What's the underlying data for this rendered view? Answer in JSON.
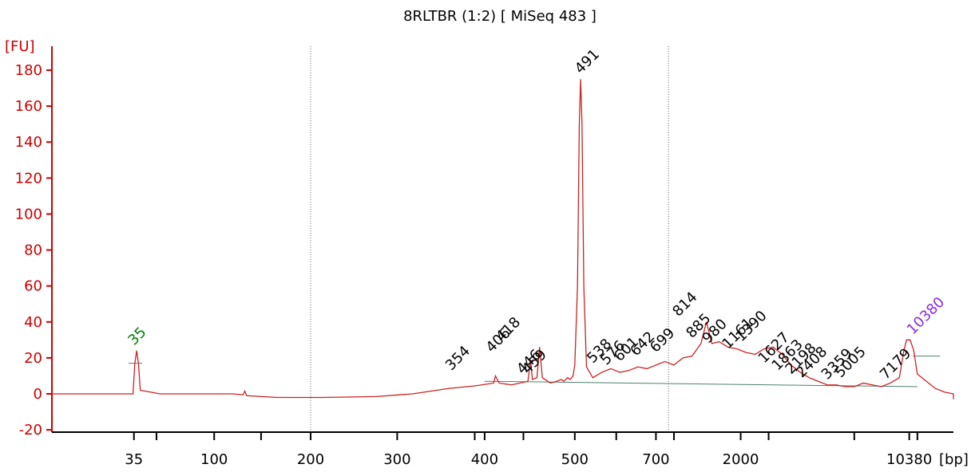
{
  "chart_data": {
    "type": "line",
    "title": "8RLTBR (1:2)  [ MiSeq 483 ]",
    "ylabel": "[FU]",
    "xlabel": "[bp]",
    "ylim": [
      -20,
      190
    ],
    "y_ticks": [
      -20,
      0,
      20,
      40,
      60,
      80,
      100,
      120,
      140,
      160,
      180
    ],
    "x_tick_labels": [
      "35",
      "100",
      "200",
      "300",
      "400",
      "500",
      "700",
      "2000",
      "10380"
    ],
    "x_axis_scale": "nonlinear (sizing ladder)",
    "markers": [
      {
        "label": "35",
        "color": "#008000"
      },
      {
        "label": "10380",
        "color": "#8a2be2"
      }
    ],
    "peak_labels": [
      {
        "label": "35",
        "color": "#008000",
        "height": 24
      },
      {
        "label": "354",
        "color": "#000000",
        "height": 10
      },
      {
        "label": "406",
        "color": "#000000",
        "height": 20
      },
      {
        "label": "418",
        "color": "#000000",
        "height": 26
      },
      {
        "label": "446",
        "color": "#000000",
        "height": 8
      },
      {
        "label": "459",
        "color": "#000000",
        "height": 8
      },
      {
        "label": "491",
        "color": "#000000",
        "height": 175
      },
      {
        "label": "538",
        "color": "#000000",
        "height": 14
      },
      {
        "label": "576",
        "color": "#000000",
        "height": 13
      },
      {
        "label": "601",
        "color": "#000000",
        "height": 15
      },
      {
        "label": "642",
        "color": "#000000",
        "height": 18
      },
      {
        "label": "699",
        "color": "#000000",
        "height": 20
      },
      {
        "label": "814",
        "color": "#000000",
        "height": 40
      },
      {
        "label": "885",
        "color": "#000000",
        "height": 28
      },
      {
        "label": "980",
        "color": "#000000",
        "height": 25
      },
      {
        "label": "1161",
        "color": "#000000",
        "height": 22
      },
      {
        "label": "1390",
        "color": "#000000",
        "height": 26
      },
      {
        "label": "1627",
        "color": "#000000",
        "height": 14
      },
      {
        "label": "1863",
        "color": "#000000",
        "height": 10
      },
      {
        "label": "2198",
        "color": "#000000",
        "height": 8
      },
      {
        "label": "2408",
        "color": "#000000",
        "height": 6
      },
      {
        "label": "3359",
        "color": "#000000",
        "height": 5
      },
      {
        "label": "5005",
        "color": "#000000",
        "height": 6
      },
      {
        "label": "7179",
        "color": "#000000",
        "height": 5
      },
      {
        "label": "10380",
        "color": "#8a2be2",
        "height": 30
      }
    ],
    "series": [
      {
        "color": "#cc2222",
        "points": [
          [
            0.0,
            0
          ],
          [
            0.06,
            0
          ],
          [
            0.09,
            0
          ],
          [
            0.092,
            17
          ],
          [
            0.094,
            24
          ],
          [
            0.096,
            17
          ],
          [
            0.098,
            2
          ],
          [
            0.12,
            0
          ],
          [
            0.2,
            0
          ],
          [
            0.212,
            -0.5
          ],
          [
            0.214,
            1.5
          ],
          [
            0.216,
            -1
          ],
          [
            0.25,
            -2
          ],
          [
            0.3,
            -2
          ],
          [
            0.36,
            -1.5
          ],
          [
            0.4,
            0
          ],
          [
            0.44,
            3
          ],
          [
            0.47,
            4.5
          ],
          [
            0.49,
            6
          ],
          [
            0.492,
            10
          ],
          [
            0.496,
            6
          ],
          [
            0.51,
            5
          ],
          [
            0.528,
            7
          ],
          [
            0.531,
            19
          ],
          [
            0.533,
            8
          ],
          [
            0.538,
            9
          ],
          [
            0.541,
            26
          ],
          [
            0.544,
            9
          ],
          [
            0.553,
            6
          ],
          [
            0.56,
            7
          ],
          [
            0.565,
            8
          ],
          [
            0.568,
            7
          ],
          [
            0.572,
            9
          ],
          [
            0.575,
            8
          ],
          [
            0.578,
            10
          ],
          [
            0.58,
            16
          ],
          [
            0.583,
            60
          ],
          [
            0.585,
            150
          ],
          [
            0.5865,
            175
          ],
          [
            0.588,
            150
          ],
          [
            0.59,
            60
          ],
          [
            0.593,
            15
          ],
          [
            0.6,
            9
          ],
          [
            0.61,
            12
          ],
          [
            0.62,
            14
          ],
          [
            0.63,
            12
          ],
          [
            0.64,
            13
          ],
          [
            0.65,
            15
          ],
          [
            0.66,
            14
          ],
          [
            0.67,
            16
          ],
          [
            0.68,
            18
          ],
          [
            0.69,
            16
          ],
          [
            0.7,
            20
          ],
          [
            0.71,
            21
          ],
          [
            0.72,
            28
          ],
          [
            0.726,
            40
          ],
          [
            0.732,
            28
          ],
          [
            0.74,
            29
          ],
          [
            0.75,
            26
          ],
          [
            0.76,
            25
          ],
          [
            0.77,
            23
          ],
          [
            0.78,
            22
          ],
          [
            0.79,
            25
          ],
          [
            0.8,
            26
          ],
          [
            0.81,
            22
          ],
          [
            0.82,
            16
          ],
          [
            0.83,
            12
          ],
          [
            0.84,
            9
          ],
          [
            0.85,
            7
          ],
          [
            0.86,
            5
          ],
          [
            0.87,
            5
          ],
          [
            0.88,
            4
          ],
          [
            0.89,
            4
          ],
          [
            0.9,
            6
          ],
          [
            0.91,
            5
          ],
          [
            0.92,
            4
          ],
          [
            0.93,
            6
          ],
          [
            0.94,
            9
          ],
          [
            0.945,
            24
          ],
          [
            0.948,
            30
          ],
          [
            0.952,
            30
          ],
          [
            0.956,
            24
          ],
          [
            0.96,
            11
          ],
          [
            0.97,
            7
          ],
          [
            0.98,
            3
          ],
          [
            0.99,
            1
          ],
          [
            1.0,
            0
          ],
          [
            1.05,
            -2
          ],
          [
            1.08,
            -3
          ]
        ]
      }
    ]
  }
}
